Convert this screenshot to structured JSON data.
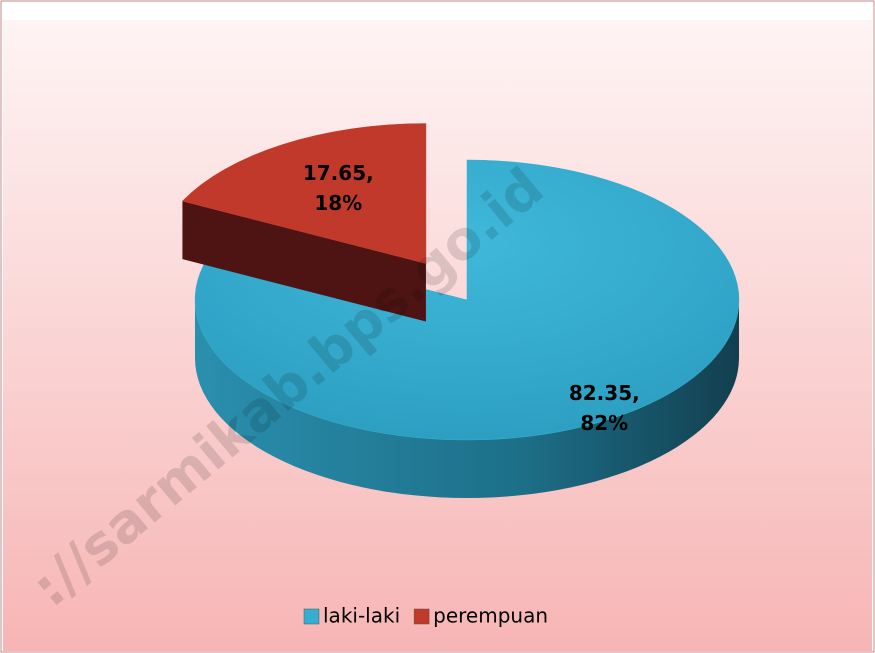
{
  "chart_data": {
    "type": "pie3d",
    "categories": [
      "laki-laki",
      "perempuan"
    ],
    "values": [
      82.35,
      17.65
    ],
    "value_labels": [
      "82.35, 82%",
      "17.65, 18%"
    ],
    "colors": [
      "#33aed0",
      "#c0392b"
    ],
    "exploded": [
      false,
      true
    ],
    "legend": "bottom",
    "watermark": "://sarmikab.bps.go.id"
  }
}
